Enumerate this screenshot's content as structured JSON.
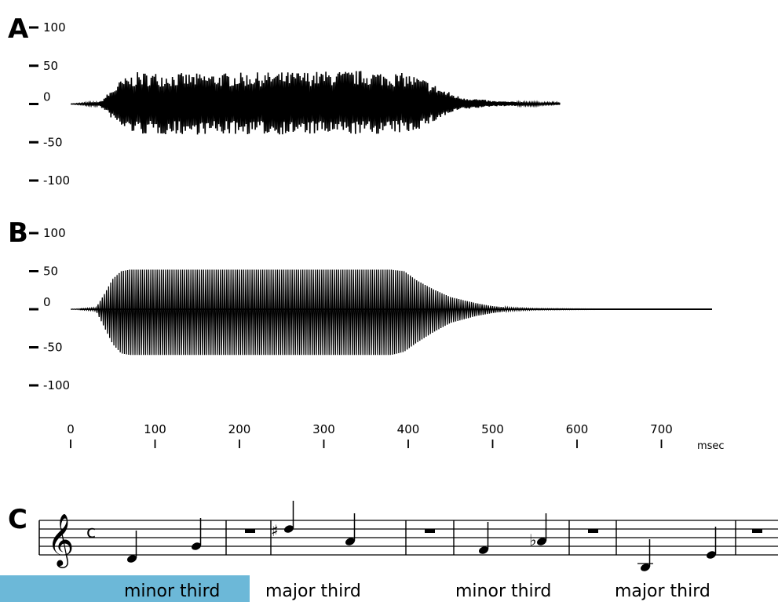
{
  "panels": {
    "a": {
      "letter": "A"
    },
    "b": {
      "letter": "B"
    },
    "c": {
      "letter": "C"
    }
  },
  "chart_data": [
    {
      "id": "A",
      "type": "line",
      "title": "",
      "xlabel": "msec",
      "ylabel": "",
      "yticks": [
        "100",
        "50",
        "0",
        "-50",
        "-100"
      ],
      "ylim": [
        -100,
        100
      ],
      "xlim": [
        0,
        700
      ],
      "grid": false,
      "envelope": {
        "x": [
          0,
          35,
          45,
          60,
          80,
          150,
          250,
          350,
          400,
          420,
          440,
          460,
          500,
          550,
          580
        ],
        "upper": [
          0,
          3,
          15,
          32,
          42,
          40,
          42,
          44,
          40,
          32,
          20,
          10,
          4,
          2,
          2
        ],
        "lower": [
          0,
          -3,
          -15,
          -32,
          -40,
          -40,
          -40,
          -40,
          -38,
          -30,
          -18,
          -8,
          -3,
          -2,
          0
        ]
      }
    },
    {
      "id": "B",
      "type": "line",
      "title": "",
      "xlabel": "msec",
      "ylabel": "",
      "yticks": [
        "100",
        "50",
        "0",
        "-50",
        "-100"
      ],
      "ylim": [
        -100,
        100
      ],
      "xlim": [
        0,
        700
      ],
      "grid": false,
      "envelope": {
        "x": [
          0,
          30,
          40,
          50,
          60,
          70,
          380,
          395,
          410,
          430,
          450,
          480,
          500,
          520,
          550,
          660,
          760
        ],
        "upper": [
          0,
          2,
          20,
          40,
          50,
          52,
          52,
          50,
          38,
          26,
          16,
          8,
          4,
          2,
          1,
          0,
          0
        ],
        "lower": [
          0,
          -2,
          -24,
          -46,
          -58,
          -60,
          -60,
          -56,
          -44,
          -30,
          -18,
          -9,
          -5,
          -2,
          -1,
          0,
          0
        ]
      }
    }
  ],
  "time_axis": {
    "ticks": [
      "0",
      "100",
      "200",
      "300",
      "400",
      "500",
      "600",
      "700"
    ],
    "values": [
      0,
      100,
      200,
      300,
      400,
      500,
      600,
      700
    ],
    "unit": "msec"
  },
  "score": {
    "clef": "treble",
    "time_signature": "C",
    "intervals": [
      "minor third",
      "major third",
      "minor third",
      "major third"
    ],
    "highlight_color": "#6cb8d8"
  }
}
